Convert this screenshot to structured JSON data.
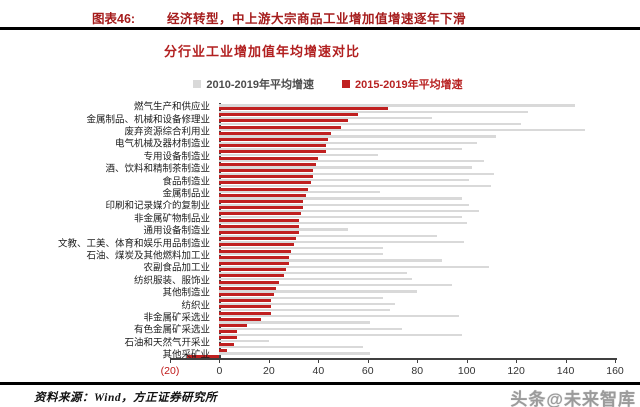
{
  "figure_header": {
    "tag": "图表46:",
    "title": "经济转型，中上游大宗商品工业增加值增速逐年下滑"
  },
  "chart_data": {
    "type": "bar",
    "orientation": "horizontal",
    "title": "分行业工业增加值年均增速对比",
    "legend": [
      {
        "name": "2010-2019年平均增速",
        "color": "#d9d9d9"
      },
      {
        "name": "2015-2019年平均增速",
        "color": "#c02020"
      }
    ],
    "xlim": [
      -20,
      160
    ],
    "xticks": [
      "(20)",
      "0",
      "20",
      "40",
      "60",
      "80",
      "100",
      "120",
      "140",
      "160"
    ],
    "xtick_values": [
      -20,
      0,
      20,
      40,
      60,
      80,
      100,
      120,
      140,
      160
    ],
    "grid": false,
    "legend_position": "top",
    "note": "41 industry rows; only every other row carries a visible label (empty string = unlabeled row)",
    "categories": [
      "燃气生产和供应业",
      "",
      "金属制品、机械和设备修理业",
      "",
      "废弃资源综合利用业",
      "",
      "电气机械及器材制造业",
      "",
      "专用设备制造业",
      "",
      "酒、饮料和精制茶制造业",
      "",
      "食品制造业",
      "",
      "金属制品业",
      "",
      "印刷和记录媒介的复制业",
      "",
      "非金属矿物制品业",
      "",
      "通用设备制造业",
      "",
      "文教、工美、体育和娱乐用品制造业",
      "",
      "石油、煤炭及其他燃料加工业",
      "",
      "农副食品加工业",
      "",
      "纺织服装、服饰业",
      "",
      "其他制造业",
      "",
      "纺织业",
      "",
      "非金属矿采选业",
      "",
      "有色金属矿采选业",
      "",
      "石油和天然气开采业",
      "",
      "其他采矿业"
    ],
    "series": [
      {
        "name": "2010-2019年平均增速",
        "values": [
          144,
          125,
          86,
          122,
          148,
          112,
          104,
          98,
          64,
          107,
          102,
          111,
          101,
          110,
          65,
          98,
          101,
          105,
          98,
          100,
          52,
          88,
          99,
          66,
          66,
          90,
          109,
          76,
          78,
          94,
          80,
          66,
          71,
          69,
          97,
          61,
          74,
          98,
          20,
          58,
          61
        ]
      },
      {
        "name": "2015-2019年平均增速",
        "values": [
          68,
          56,
          52,
          49,
          45,
          44,
          43,
          43,
          40,
          39,
          38,
          38,
          37,
          36,
          35,
          34,
          34,
          33,
          32,
          32,
          32,
          31,
          30,
          29,
          28,
          28,
          27,
          26,
          24,
          23,
          22,
          21,
          21,
          21,
          17,
          11,
          7,
          7,
          6,
          3,
          -13
        ]
      }
    ]
  },
  "footer": {
    "source": "资料来源：Wind，方正证券研究所"
  },
  "watermark": "头条@未来智库"
}
